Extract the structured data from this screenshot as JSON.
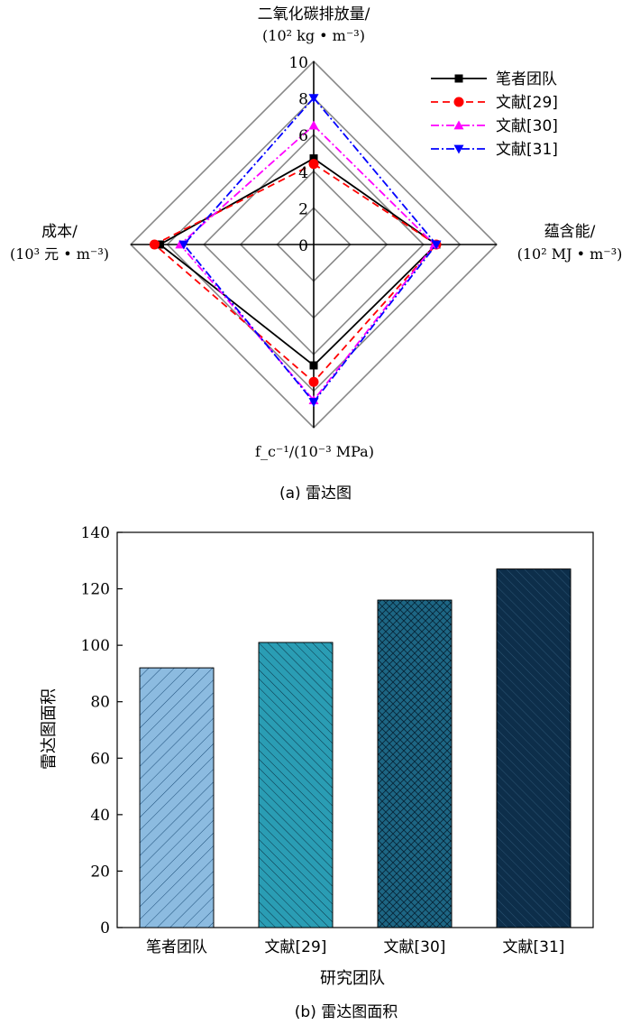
{
  "chart_data": [
    {
      "type": "radar",
      "caption": "(a)  雷达图",
      "axes": [
        {
          "key": "co2",
          "label_line1": "二氧化碳排放量/",
          "label_line2": "(10² kg • m⁻³)",
          "direction": "top"
        },
        {
          "key": "energy",
          "label_line1": "蕴含能/",
          "label_line2": "(10² MJ • m⁻³)",
          "direction": "right"
        },
        {
          "key": "fc_inv",
          "label_line1": "",
          "label_line2": "f_c⁻¹/(10⁻³ MPa)",
          "direction": "bottom"
        },
        {
          "key": "cost",
          "label_line1": "成本/",
          "label_line2": "(10³ 元 • m⁻³)",
          "direction": "left"
        }
      ],
      "ticks": [
        "0",
        "2",
        "4",
        "6",
        "8",
        "10"
      ],
      "range": [
        0,
        10
      ],
      "series": [
        {
          "name": "笔者团队",
          "color": "#000000",
          "dash": "",
          "marker": "square",
          "values": {
            "co2": 4.7,
            "energy": 6.7,
            "fc_inv": 6.6,
            "cost": 8.4
          }
        },
        {
          "name": "文献[29]",
          "color": "#ff0000",
          "dash": "8,5",
          "marker": "circle",
          "values": {
            "co2": 4.4,
            "energy": 6.7,
            "fc_inv": 7.5,
            "cost": 8.7
          }
        },
        {
          "name": "文献[30]",
          "color": "#ff00ff",
          "dash": "9,3,2,3",
          "marker": "triangle-up",
          "values": {
            "co2": 6.5,
            "energy": 6.6,
            "fc_inv": 8.5,
            "cost": 7.3
          }
        },
        {
          "name": "文献[31]",
          "color": "#0000ff",
          "dash": "9,3,2,3",
          "marker": "triangle-down",
          "values": {
            "co2": 8.0,
            "energy": 6.7,
            "fc_inv": 8.6,
            "cost": 7.1
          }
        }
      ]
    },
    {
      "type": "bar",
      "caption": "(b)  雷达图面积",
      "xlabel": "研究团队",
      "ylabel": "雷达图面积",
      "ylim": [
        0,
        140
      ],
      "yticks": [
        "0",
        "20",
        "40",
        "60",
        "80",
        "100",
        "120",
        "140"
      ],
      "categories": [
        "笔者团队",
        "文献[29]",
        "文献[30]",
        "文献[31]"
      ],
      "values": [
        92,
        101,
        116,
        127
      ],
      "colors": [
        "#8cbbe0",
        "#2a9db4",
        "#1d6684",
        "#0d2e4a"
      ],
      "patterns": [
        "diag-sparse",
        "diag-dense",
        "cross",
        "diag-dense"
      ]
    }
  ]
}
